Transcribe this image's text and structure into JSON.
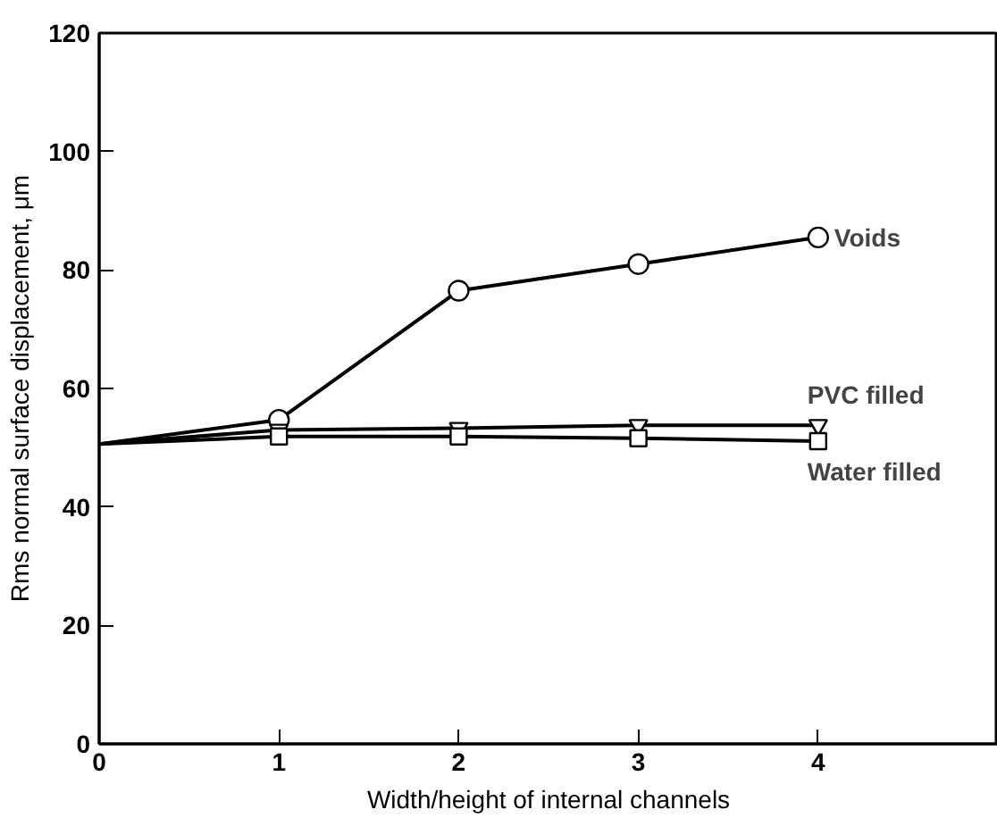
{
  "chart_data": {
    "type": "line",
    "xlabel": "Width/height of internal channels",
    "ylabel": "Rms normal surface displacement, μm",
    "xlim": [
      0,
      5
    ],
    "xticks": [
      0,
      1,
      2,
      3,
      4
    ],
    "ylim": [
      0,
      120
    ],
    "yticks": [
      0,
      20,
      40,
      60,
      80,
      100,
      120
    ],
    "grid": false,
    "line_style": "solid",
    "series": [
      {
        "name": "Voids",
        "color": "#000000",
        "marker": "circle",
        "x": [
          0,
          1,
          2,
          3,
          4
        ],
        "values": [
          50.6,
          54.7,
          76.5,
          81,
          85.5
        ]
      },
      {
        "name": "PVC filled",
        "color": "#000000",
        "marker": "triangle",
        "x": [
          0,
          1,
          2,
          3,
          4
        ],
        "values": [
          50.6,
          53,
          53.3,
          53.8,
          53.8
        ]
      },
      {
        "name": "Water filled",
        "color": "#000000",
        "marker": "square",
        "x": [
          0,
          1,
          2,
          3,
          4
        ],
        "values": [
          50.6,
          51.9,
          51.9,
          51.6,
          51.1
        ]
      }
    ]
  }
}
